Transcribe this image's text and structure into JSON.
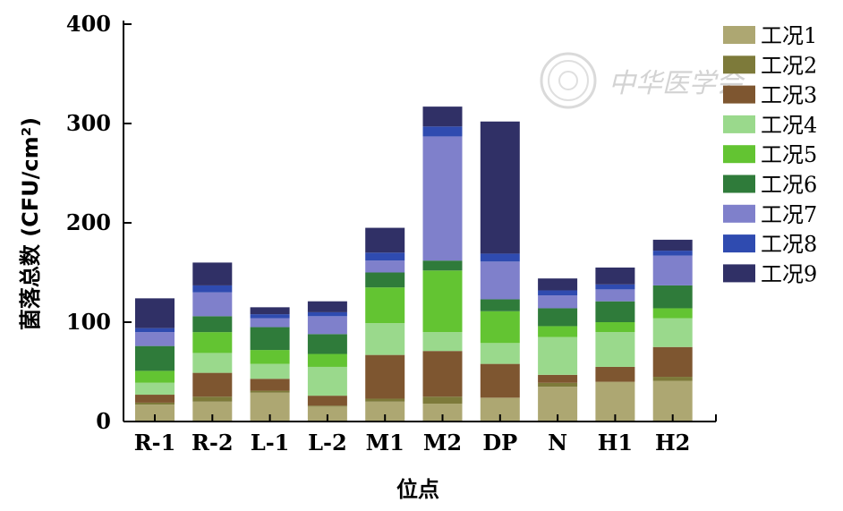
{
  "chart_data": {
    "type": "bar",
    "stacked": true,
    "xlabel": "位点",
    "ylabel": "菌落总数 (CFU/cm²)",
    "ylim": [
      0,
      400
    ],
    "yticks": [
      0,
      100,
      200,
      300,
      400
    ],
    "grid": false,
    "legend_position": "right",
    "categories": [
      "R-1",
      "R-2",
      "L-1",
      "L-2",
      "M1",
      "M2",
      "DP",
      "N",
      "H1",
      "H2"
    ],
    "series": [
      {
        "name": "工况1",
        "color": "#ADA772",
        "values": [
          17,
          20,
          29,
          15,
          20,
          18,
          24,
          35,
          40,
          41
        ]
      },
      {
        "name": "工况2",
        "color": "#7D7A3A",
        "values": [
          2,
          5,
          2,
          1,
          3,
          7,
          0,
          4,
          0,
          4
        ]
      },
      {
        "name": "工况3",
        "color": "#7E5630",
        "values": [
          8,
          24,
          12,
          10,
          44,
          46,
          34,
          8,
          15,
          30
        ]
      },
      {
        "name": "工况4",
        "color": "#9AD98C",
        "values": [
          12,
          20,
          15,
          29,
          32,
          19,
          21,
          38,
          35,
          29
        ]
      },
      {
        "name": "工况5",
        "color": "#63C432",
        "values": [
          12,
          21,
          14,
          13,
          36,
          62,
          32,
          11,
          10,
          10
        ]
      },
      {
        "name": "工况6",
        "color": "#2F7B3A",
        "values": [
          25,
          16,
          23,
          20,
          15,
          10,
          12,
          18,
          21,
          23
        ]
      },
      {
        "name": "工况7",
        "color": "#7F80CB",
        "values": [
          14,
          24,
          9,
          18,
          12,
          125,
          38,
          13,
          12,
          30
        ]
      },
      {
        "name": "工况8",
        "color": "#2F4BB0",
        "values": [
          4,
          7,
          4,
          4,
          8,
          10,
          8,
          5,
          5,
          5
        ]
      },
      {
        "name": "工况9",
        "color": "#303066",
        "values": [
          30,
          23,
          7,
          11,
          25,
          20,
          133,
          12,
          17,
          11
        ]
      }
    ]
  },
  "watermark": "中华医学会"
}
